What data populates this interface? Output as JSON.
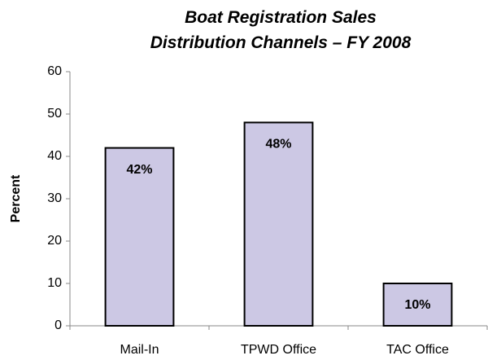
{
  "chart_data": {
    "type": "bar",
    "title": "Boat Registration Sales\nDistribution Channels – FY 2008",
    "y_label": "Percent",
    "categories": [
      "Mail-In",
      "TPWD Office",
      "TAC Office"
    ],
    "values": [
      42,
      48,
      10
    ],
    "value_labels": [
      "42%",
      "48%",
      "10%"
    ],
    "color": "#ccc8e4",
    "ylim": [
      0,
      60
    ],
    "yticks": [
      0,
      10,
      20,
      30,
      40,
      50,
      60
    ],
    "grid": false
  }
}
